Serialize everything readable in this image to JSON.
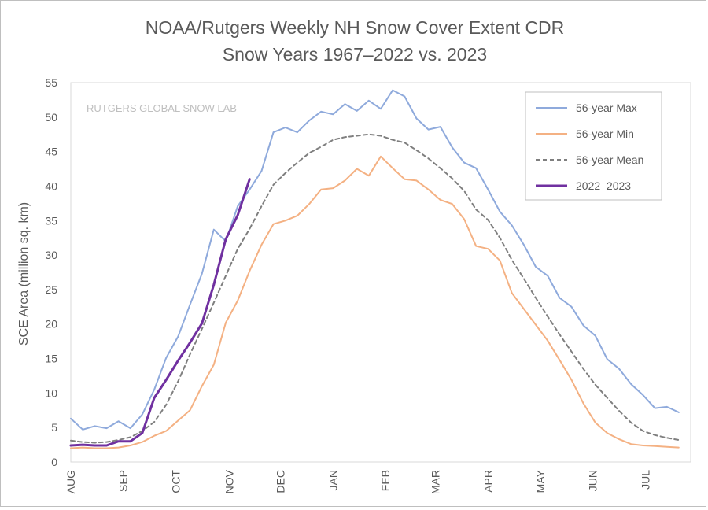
{
  "chart_data": {
    "type": "line",
    "title": [
      "NOAA/Rutgers Weekly NH Snow Cover Extent CDR",
      "Snow Years 1967–2022 vs. 2023"
    ],
    "watermark": "RUTGERS GLOBAL SNOW LAB",
    "ylabel": "SCE Area (million sq. km)",
    "xlabel": "",
    "ylim": [
      0,
      55
    ],
    "yticks": [
      0,
      5,
      10,
      15,
      20,
      25,
      30,
      35,
      40,
      45,
      50,
      55
    ],
    "xlim": [
      0,
      52
    ],
    "x_ticks": [
      {
        "label": "AUG",
        "week": 0
      },
      {
        "label": "SEP",
        "week": 4.4
      },
      {
        "label": "OCT",
        "week": 8.8
      },
      {
        "label": "NOV",
        "week": 13.3
      },
      {
        "label": "DEC",
        "week": 17.6
      },
      {
        "label": "JAN",
        "week": 22
      },
      {
        "label": "FEB",
        "week": 26.4
      },
      {
        "label": "MAR",
        "week": 30.6
      },
      {
        "label": "APR",
        "week": 35
      },
      {
        "label": "MAY",
        "week": 39.4
      },
      {
        "label": "JUN",
        "week": 43.8
      },
      {
        "label": "JUL",
        "week": 48.2
      }
    ],
    "grid": false,
    "legend_position": "top-right",
    "series": [
      {
        "name": "56-year Max",
        "color": "#8faadc",
        "style": "solid",
        "values": [
          6.3,
          4.7,
          5.2,
          4.9,
          5.9,
          4.9,
          6.9,
          10.5,
          15.1,
          18.2,
          22.8,
          27.3,
          33.7,
          32.0,
          37.1,
          39.5,
          42.2,
          47.8,
          48.5,
          47.8,
          49.5,
          50.8,
          50.4,
          51.9,
          50.9,
          52.4,
          51.2,
          53.9,
          53.0,
          49.8,
          48.2,
          48.6,
          45.6,
          43.4,
          42.6,
          39.5,
          36.3,
          34.3,
          31.5,
          28.3,
          27.0,
          23.8,
          22.5,
          19.8,
          18.3,
          14.9,
          13.5,
          11.3,
          9.7,
          7.8,
          8.0,
          7.2
        ]
      },
      {
        "name": "56-year Min",
        "color": "#f4b183",
        "style": "solid",
        "values": [
          2.0,
          2.1,
          2.0,
          2.0,
          2.1,
          2.4,
          2.9,
          3.8,
          4.5,
          6.0,
          7.5,
          11.0,
          14.1,
          20.2,
          23.4,
          27.7,
          31.5,
          34.5,
          35.0,
          35.7,
          37.4,
          39.5,
          39.7,
          40.8,
          42.5,
          41.5,
          44.3,
          42.6,
          41.0,
          40.8,
          39.5,
          38.0,
          37.4,
          35.2,
          31.3,
          30.9,
          29.2,
          24.5,
          22.2,
          19.9,
          17.6,
          14.8,
          11.9,
          8.5,
          5.7,
          4.2,
          3.3,
          2.6,
          2.4,
          2.3,
          2.2,
          2.1
        ]
      },
      {
        "name": "56-year Mean",
        "color": "#7f7f7f",
        "style": "dashed",
        "values": [
          3.1,
          2.9,
          2.8,
          2.9,
          3.2,
          3.6,
          4.5,
          5.8,
          8.3,
          11.7,
          15.6,
          19.3,
          23.1,
          27.0,
          30.9,
          33.8,
          37.1,
          40.2,
          41.9,
          43.4,
          44.8,
          45.7,
          46.7,
          47.1,
          47.3,
          47.5,
          47.3,
          46.7,
          46.3,
          45.2,
          44.0,
          42.6,
          41.1,
          39.3,
          36.6,
          35.1,
          32.5,
          29.3,
          26.6,
          23.8,
          21.1,
          18.5,
          16.0,
          13.5,
          11.2,
          9.3,
          7.4,
          5.7,
          4.5,
          3.9,
          3.5,
          3.2
        ]
      },
      {
        "name": "2022–2023",
        "color": "#7030a0",
        "style": "solid",
        "values": [
          2.4,
          2.5,
          2.4,
          2.4,
          3.0,
          3.0,
          4.2,
          9.3,
          11.9,
          14.7,
          17.3,
          20.1,
          25.7,
          32.3,
          35.8,
          41.0
        ]
      }
    ]
  }
}
